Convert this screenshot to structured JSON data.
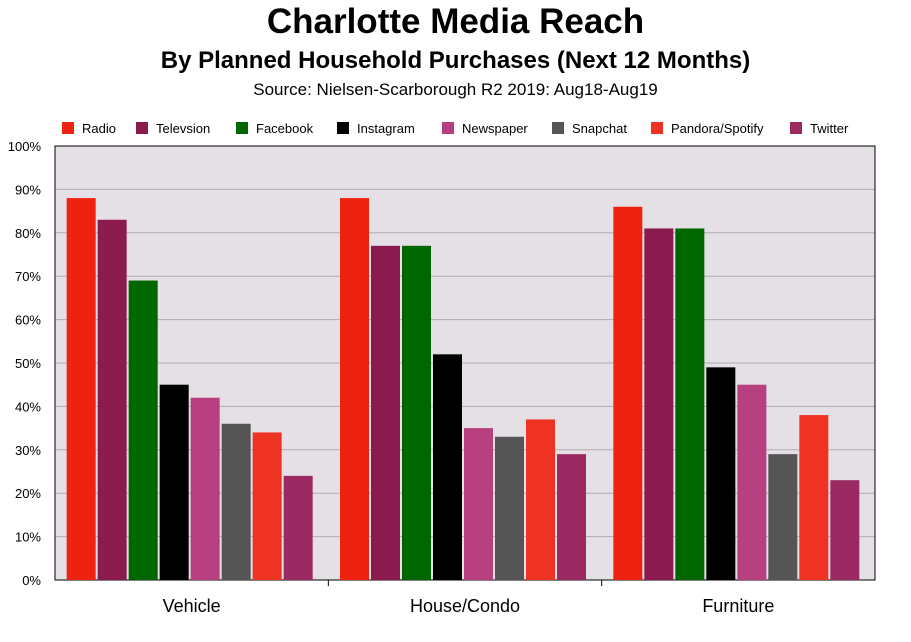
{
  "chart_data": {
    "type": "bar",
    "title": "Charlotte Media Reach",
    "subtitle": "By Planned Household Purchases (Next 12 Months)",
    "source": "Source: Nielsen-Scarborough R2 2019: Aug18-Aug19",
    "categories": [
      "Vehicle",
      "House/Condo",
      "Furniture"
    ],
    "ylim": [
      0,
      100
    ],
    "yticks": [
      "0%",
      "10%",
      "20%",
      "30%",
      "40%",
      "50%",
      "60%",
      "70%",
      "80%",
      "90%",
      "100%"
    ],
    "grid": true,
    "legend_position": "top",
    "series": [
      {
        "name": "Radio",
        "color": "#ee2211",
        "values": [
          88,
          88,
          86
        ]
      },
      {
        "name": "Televsion",
        "color": "#8b1a4f",
        "values": [
          83,
          77,
          81
        ]
      },
      {
        "name": "Facebook",
        "color": "#006600",
        "values": [
          69,
          77,
          81
        ]
      },
      {
        "name": "Instagram",
        "color": "#000000",
        "values": [
          45,
          52,
          49
        ]
      },
      {
        "name": "Newspaper",
        "color": "#b84080",
        "values": [
          42,
          35,
          45
        ]
      },
      {
        "name": "Snapchat",
        "color": "#555555",
        "values": [
          36,
          33,
          29
        ]
      },
      {
        "name": "Pandora/Spotify",
        "color": "#ee3322",
        "values": [
          34,
          37,
          38
        ]
      },
      {
        "name": "Twitter",
        "color": "#9b2a62",
        "values": [
          24,
          29,
          23
        ]
      }
    ]
  }
}
